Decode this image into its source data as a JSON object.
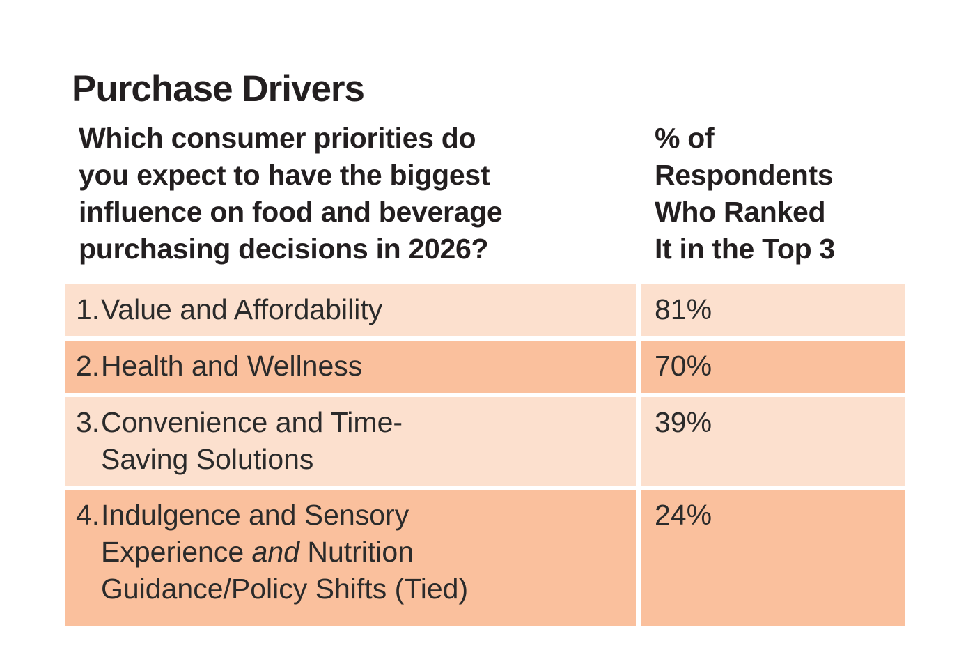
{
  "title": "Purchase Drivers",
  "colors": {
    "bg": "#FFFFFF",
    "heading-text": "#231F20",
    "body-text": "#2B2B2B",
    "row-light": "#FCE0CE",
    "row-dark": "#FAC09D"
  },
  "table": {
    "question_header": {
      "lines": [
        "Which consumer priorities do",
        "you expect to have the biggest",
        "influence on food and beverage",
        "purchasing decisions in 2026?"
      ]
    },
    "value_header": {
      "lines": [
        "% of",
        "Respondents",
        "Who Ranked",
        "It in the Top 3"
      ]
    },
    "rows": [
      {
        "number": "1.",
        "value": "81%",
        "shade": "light",
        "lines": [
          {
            "segments": [
              {
                "text": "Value and Affordability",
                "italic": false
              }
            ]
          }
        ]
      },
      {
        "number": "2.",
        "value": "70%",
        "shade": "dark",
        "lines": [
          {
            "segments": [
              {
                "text": "Health and Wellness",
                "italic": false
              }
            ]
          }
        ]
      },
      {
        "number": "3.",
        "value": "39%",
        "shade": "light",
        "lines": [
          {
            "segments": [
              {
                "text": "Convenience and Time-",
                "italic": false
              }
            ]
          },
          {
            "segments": [
              {
                "text": "Saving Solutions",
                "italic": false
              }
            ]
          }
        ]
      },
      {
        "number": "4.",
        "value": "24%",
        "shade": "dark",
        "lines": [
          {
            "segments": [
              {
                "text": "Indulgence and Sensory",
                "italic": false
              }
            ]
          },
          {
            "segments": [
              {
                "text": "Experience ",
                "italic": false
              },
              {
                "text": "and",
                "italic": true
              },
              {
                "text": " Nutrition",
                "italic": false
              }
            ]
          },
          {
            "segments": [
              {
                "text": "Guidance/Policy Shifts (Tied)",
                "italic": false
              }
            ]
          }
        ]
      }
    ]
  },
  "chart_data": {
    "type": "table",
    "title": "Purchase Drivers",
    "columns": [
      "Which consumer priorities do you expect to have the biggest influence on food and beverage purchasing decisions in 2026?",
      "% of Respondents Who Ranked It in the Top 3"
    ],
    "categories": [
      "1. Value and Affordability",
      "2. Health and Wellness",
      "3. Convenience and Time-Saving Solutions",
      "4. Indulgence and Sensory Experience and Nutrition Guidance/Policy Shifts (Tied)"
    ],
    "values": [
      81,
      70,
      39,
      24
    ],
    "value_labels": [
      "81%",
      "70%",
      "39%",
      "24%"
    ],
    "layout": {
      "row_shading": [
        "light",
        "dark",
        "light",
        "dark"
      ],
      "grid": "off",
      "legend": "none"
    }
  }
}
